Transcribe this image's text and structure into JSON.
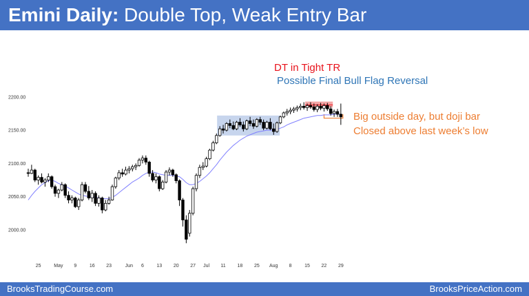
{
  "header": {
    "title_bold": "Emini Daily:",
    "title_rest": " Double Top, Weak Entry Bar"
  },
  "footer": {
    "left": "BrooksTradingCourse.com",
    "right": "BrooksPriceAction.com"
  },
  "colors": {
    "banner": "#4472c4",
    "red": "#e8121b",
    "blue": "#2e75b6",
    "orange": "#ed7d31",
    "ema": "#8080ff",
    "box": "#b4c7e7",
    "dt_box": "#f4a6a6"
  },
  "annotations": {
    "dt_line1": "DT in Tight TR",
    "dt_line2": "Possible Final Bull Flag Reversal",
    "right_line1": "Big outside day, but doji bar",
    "right_line2": "Closed above last week’s low"
  },
  "chart_data": {
    "type": "candlestick",
    "title": "",
    "ylim": [
      1975,
      2215
    ],
    "y_ticks": [
      "2000.00",
      "2050.00",
      "2100.00",
      "2150.00",
      "2200.00"
    ],
    "x_ticks": [
      "25",
      "May",
      "9",
      "16",
      "23",
      "Jun",
      "6",
      "13",
      "20",
      "27",
      "Jul",
      "11",
      "18",
      "25",
      "Aug",
      "8",
      "15",
      "22",
      "29"
    ],
    "x_tick_index": [
      3,
      9,
      14,
      19,
      24,
      30,
      34,
      39,
      44,
      49,
      53,
      58,
      63,
      68,
      73,
      78,
      83,
      88,
      93
    ],
    "ohlc": [
      [
        2086,
        2092,
        2080,
        2085
      ],
      [
        2085,
        2098,
        2084,
        2090
      ],
      [
        2090,
        2092,
        2072,
        2075
      ],
      [
        2075,
        2082,
        2068,
        2079
      ],
      [
        2079,
        2085,
        2070,
        2072
      ],
      [
        2072,
        2078,
        2065,
        2075
      ],
      [
        2075,
        2085,
        2072,
        2080
      ],
      [
        2080,
        2082,
        2062,
        2065
      ],
      [
        2065,
        2068,
        2050,
        2055
      ],
      [
        2055,
        2062,
        2048,
        2060
      ],
      [
        2060,
        2072,
        2058,
        2068
      ],
      [
        2068,
        2070,
        2048,
        2052
      ],
      [
        2052,
        2058,
        2040,
        2045
      ],
      [
        2045,
        2052,
        2040,
        2048
      ],
      [
        2048,
        2050,
        2033,
        2035
      ],
      [
        2035,
        2048,
        2030,
        2045
      ],
      [
        2045,
        2072,
        2043,
        2068
      ],
      [
        2068,
        2072,
        2055,
        2058
      ],
      [
        2058,
        2066,
        2045,
        2048
      ],
      [
        2048,
        2060,
        2042,
        2055
      ],
      [
        2055,
        2058,
        2036,
        2040
      ],
      [
        2040,
        2052,
        2035,
        2048
      ],
      [
        2048,
        2050,
        2025,
        2030
      ],
      [
        2030,
        2045,
        2028,
        2040
      ],
      [
        2040,
        2050,
        2038,
        2045
      ],
      [
        2045,
        2068,
        2044,
        2065
      ],
      [
        2065,
        2080,
        2062,
        2078
      ],
      [
        2078,
        2090,
        2075,
        2086
      ],
      [
        2086,
        2092,
        2080,
        2084
      ],
      [
        2084,
        2095,
        2082,
        2090
      ],
      [
        2090,
        2096,
        2085,
        2092
      ],
      [
        2092,
        2098,
        2088,
        2095
      ],
      [
        2095,
        2100,
        2090,
        2097
      ],
      [
        2097,
        2108,
        2095,
        2105
      ],
      [
        2105,
        2112,
        2100,
        2108
      ],
      [
        2108,
        2112,
        2098,
        2102
      ],
      [
        2102,
        2104,
        2080,
        2085
      ],
      [
        2085,
        2090,
        2072,
        2075
      ],
      [
        2075,
        2085,
        2070,
        2080
      ],
      [
        2080,
        2082,
        2058,
        2062
      ],
      [
        2062,
        2075,
        2060,
        2072
      ],
      [
        2072,
        2090,
        2070,
        2087
      ],
      [
        2087,
        2094,
        2082,
        2090
      ],
      [
        2090,
        2092,
        2080,
        2083
      ],
      [
        2083,
        2085,
        2070,
        2074
      ],
      [
        2074,
        2076,
        2036,
        2045
      ],
      [
        2045,
        2048,
        2005,
        2015
      ],
      [
        2015,
        2022,
        1980,
        1986
      ],
      [
        1995,
        2030,
        1990,
        2025
      ],
      [
        2025,
        2065,
        2022,
        2062
      ],
      [
        2062,
        2085,
        2058,
        2082
      ],
      [
        2082,
        2098,
        2078,
        2094
      ],
      [
        2094,
        2102,
        2090,
        2096
      ],
      [
        2096,
        2110,
        2094,
        2107
      ],
      [
        2107,
        2122,
        2105,
        2120
      ],
      [
        2120,
        2134,
        2118,
        2131
      ],
      [
        2131,
        2145,
        2129,
        2142
      ],
      [
        2142,
        2156,
        2140,
        2152
      ],
      [
        2152,
        2158,
        2145,
        2150
      ],
      [
        2150,
        2162,
        2148,
        2160
      ],
      [
        2160,
        2166,
        2153,
        2157
      ],
      [
        2157,
        2163,
        2150,
        2152
      ],
      [
        2152,
        2164,
        2150,
        2162
      ],
      [
        2162,
        2168,
        2155,
        2158
      ],
      [
        2158,
        2163,
        2148,
        2152
      ],
      [
        2152,
        2166,
        2150,
        2164
      ],
      [
        2164,
        2170,
        2156,
        2160
      ],
      [
        2160,
        2166,
        2152,
        2156
      ],
      [
        2156,
        2168,
        2154,
        2166
      ],
      [
        2166,
        2170,
        2158,
        2162
      ],
      [
        2162,
        2166,
        2150,
        2153
      ],
      [
        2153,
        2164,
        2151,
        2162
      ],
      [
        2162,
        2168,
        2150,
        2152
      ],
      [
        2152,
        2160,
        2143,
        2148
      ],
      [
        2148,
        2163,
        2146,
        2161
      ],
      [
        2161,
        2172,
        2159,
        2170
      ],
      [
        2170,
        2178,
        2168,
        2176
      ],
      [
        2176,
        2182,
        2172,
        2178
      ],
      [
        2178,
        2184,
        2174,
        2180
      ],
      [
        2180,
        2185,
        2176,
        2182
      ],
      [
        2182,
        2187,
        2178,
        2184
      ],
      [
        2184,
        2190,
        2180,
        2186
      ],
      [
        2186,
        2192,
        2181,
        2184
      ],
      [
        2184,
        2190,
        2179,
        2187
      ],
      [
        2187,
        2192,
        2182,
        2185
      ],
      [
        2185,
        2190,
        2178,
        2181
      ],
      [
        2181,
        2189,
        2177,
        2186
      ],
      [
        2186,
        2191,
        2180,
        2183
      ],
      [
        2183,
        2190,
        2178,
        2187
      ],
      [
        2187,
        2191,
        2179,
        2182
      ],
      [
        2182,
        2186,
        2172,
        2175
      ],
      [
        2175,
        2181,
        2170,
        2178
      ],
      [
        2178,
        2182,
        2170,
        2174
      ],
      [
        2174,
        2190,
        2158,
        2170
      ]
    ],
    "ema20": [
      2045,
      2052,
      2058,
      2063,
      2068,
      2071,
      2074,
      2075,
      2073,
      2070,
      2068,
      2066,
      2063,
      2060,
      2057,
      2054,
      2052,
      2051,
      2050,
      2050,
      2049,
      2048,
      2047,
      2047,
      2047,
      2049,
      2052,
      2056,
      2060,
      2064,
      2068,
      2072,
      2075,
      2078,
      2082,
      2085,
      2087,
      2087,
      2086,
      2084,
      2083,
      2082,
      2082,
      2082,
      2081,
      2080,
      2076,
      2071,
      2068,
      2068,
      2070,
      2073,
      2077,
      2081,
      2086,
      2092,
      2098,
      2105,
      2111,
      2117,
      2122,
      2127,
      2131,
      2135,
      2138,
      2141,
      2143,
      2145,
      2147,
      2148,
      2149,
      2150,
      2150,
      2150,
      2151,
      2153,
      2155,
      2158,
      2160,
      2162,
      2164,
      2166,
      2168,
      2169,
      2170,
      2171,
      2172,
      2172,
      2173,
      2173,
      2173,
      2174,
      2174,
      2174
    ]
  }
}
